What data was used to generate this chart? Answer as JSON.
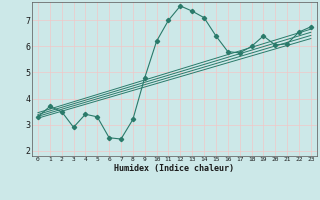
{
  "xlabel": "Humidex (Indice chaleur)",
  "bg_color": "#cce8e8",
  "grid_color": "#f0c8c8",
  "line_color": "#2a7a6a",
  "xlim": [
    -0.5,
    23.5
  ],
  "ylim": [
    1.8,
    7.7
  ],
  "xticks": [
    0,
    1,
    2,
    3,
    4,
    5,
    6,
    7,
    8,
    9,
    10,
    11,
    12,
    13,
    14,
    15,
    16,
    17,
    18,
    19,
    20,
    21,
    22,
    23
  ],
  "yticks": [
    2,
    3,
    4,
    5,
    6,
    7
  ],
  "main_x": [
    0,
    1,
    2,
    3,
    4,
    5,
    6,
    7,
    8,
    9,
    10,
    11,
    12,
    13,
    14,
    15,
    16,
    17,
    18,
    19,
    20,
    21,
    22,
    23
  ],
  "main_y": [
    3.3,
    3.7,
    3.5,
    2.9,
    3.4,
    3.3,
    2.5,
    2.45,
    3.2,
    4.8,
    6.2,
    7.0,
    7.55,
    7.35,
    7.1,
    6.4,
    5.8,
    5.75,
    6.0,
    6.4,
    6.05,
    6.1,
    6.55,
    6.75
  ],
  "reg_lines": [
    {
      "x": [
        0,
        23
      ],
      "y": [
        3.25,
        6.3
      ]
    },
    {
      "x": [
        0,
        23
      ],
      "y": [
        3.32,
        6.42
      ]
    },
    {
      "x": [
        0,
        23
      ],
      "y": [
        3.39,
        6.54
      ]
    },
    {
      "x": [
        0,
        23
      ],
      "y": [
        3.46,
        6.66
      ]
    }
  ]
}
